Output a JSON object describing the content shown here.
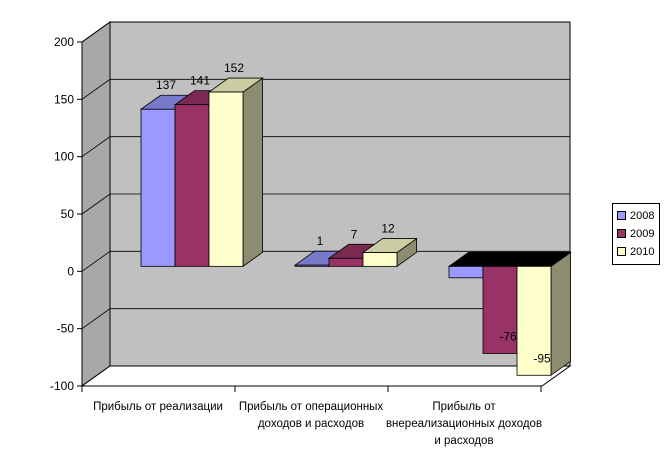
{
  "chart_data": {
    "type": "bar",
    "categories": [
      [
        "Прибыль от реализации"
      ],
      [
        "Прибыль от операционных",
        "доходов и расходов"
      ],
      [
        "Прибыль от",
        "внереализационных доходов",
        "и расходов"
      ]
    ],
    "series": [
      {
        "name": "2008",
        "values": [
          137,
          1,
          -10
        ],
        "color": "#9999ff"
      },
      {
        "name": "2009",
        "values": [
          141,
          7,
          -76
        ],
        "color": "#993366"
      },
      {
        "name": "2010",
        "values": [
          152,
          12,
          -95
        ],
        "color": "#ffffcc"
      }
    ],
    "data_labels": [
      [
        "137",
        "141",
        "152"
      ],
      [
        "1",
        "7",
        "12"
      ],
      [
        "",
        "-76",
        "-95"
      ]
    ],
    "ylim": [
      -100,
      200
    ],
    "yticks": [
      -100,
      -50,
      0,
      50,
      100,
      150,
      200
    ],
    "grid": true,
    "legend_position": "right",
    "wall_color": "#c0c0c0"
  }
}
